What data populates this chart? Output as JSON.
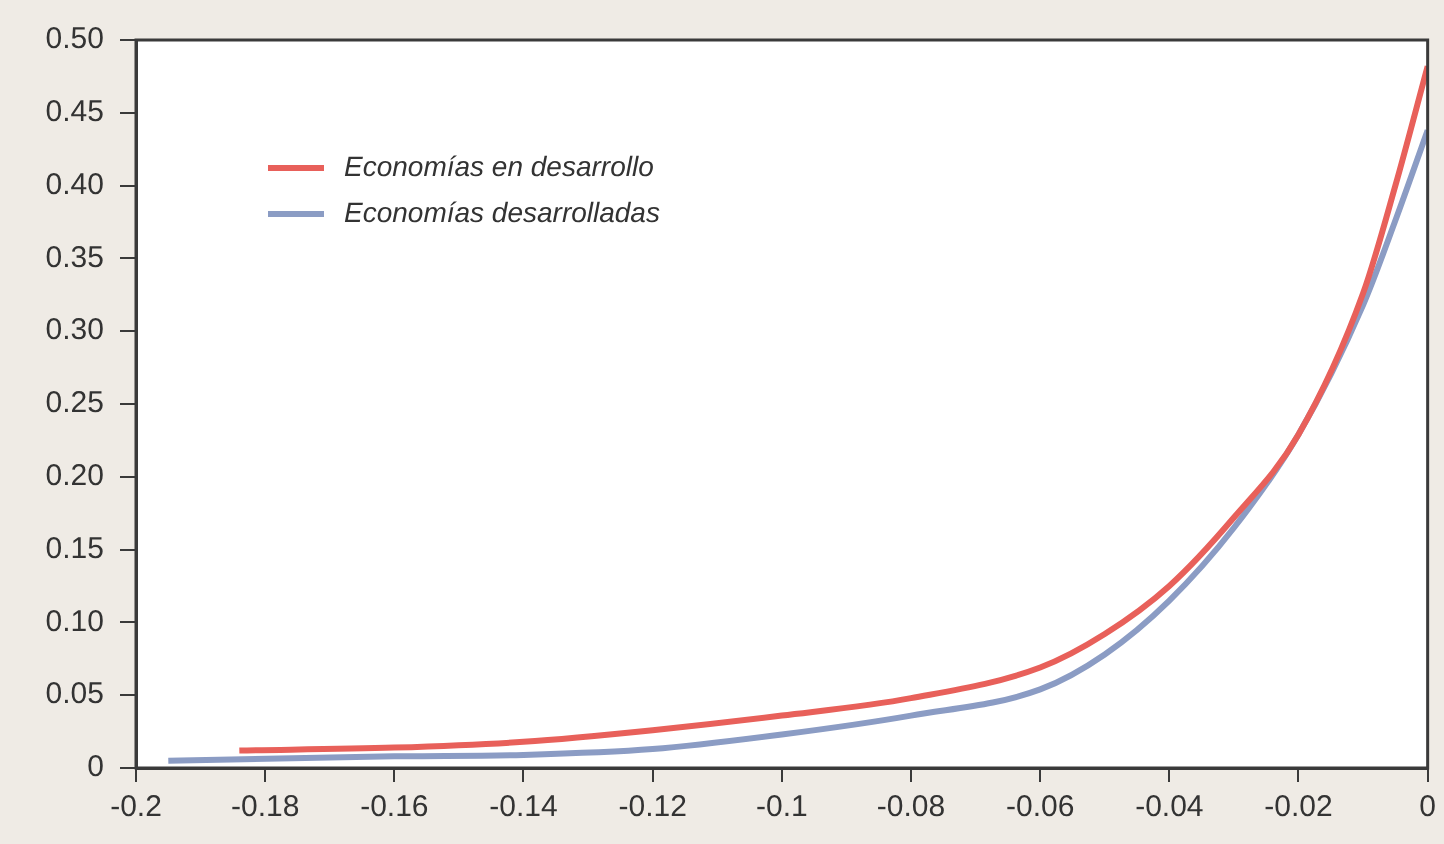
{
  "chart_data": {
    "type": "line",
    "xlim": [
      -0.2,
      0
    ],
    "xticks": [
      -0.2,
      -0.18,
      -0.16,
      -0.14,
      -0.12,
      -0.1,
      -0.08,
      -0.06,
      -0.04,
      -0.02,
      0
    ],
    "ylim": [
      0,
      0.5
    ],
    "yticks": [
      0,
      0.05,
      {
        "value": 0.1,
        "label": "0.10"
      },
      0.15,
      {
        "value": 0.2,
        "label": "0.20"
      },
      0.25,
      {
        "value": 0.3,
        "label": "0.30"
      },
      0.35,
      {
        "value": 0.4,
        "label": "0.40"
      },
      0.45,
      {
        "value": 0.5,
        "label": "0.50"
      }
    ],
    "grid": false,
    "legend": "top left",
    "marker": "none",
    "line_style": "solid",
    "series": [
      {
        "name": "Economías en desarrollo",
        "color": "#e8605a",
        "x": [
          -0.184,
          -0.16,
          -0.14,
          -0.12,
          -0.1,
          -0.08,
          -0.06,
          -0.05,
          -0.04,
          -0.03,
          -0.02,
          -0.01,
          -0.005,
          0
        ],
        "values": [
          0.012,
          0.014,
          0.018,
          0.026,
          0.036,
          0.048,
          0.069,
          0.092,
          0.125,
          0.172,
          0.229,
          0.326,
          0.4,
          0.482
        ]
      },
      {
        "name": "Economías desarrolladas",
        "color": "#8b9cc4",
        "x": [
          -0.195,
          -0.16,
          -0.14,
          -0.12,
          -0.1,
          -0.08,
          -0.06,
          -0.05,
          -0.04,
          -0.03,
          -0.02,
          -0.01,
          -0.005,
          0
        ],
        "values": [
          0.005,
          0.008,
          0.009,
          0.013,
          0.023,
          0.036,
          0.054,
          0.078,
          0.115,
          0.165,
          0.229,
          0.318,
          0.376,
          0.438
        ]
      }
    ]
  }
}
